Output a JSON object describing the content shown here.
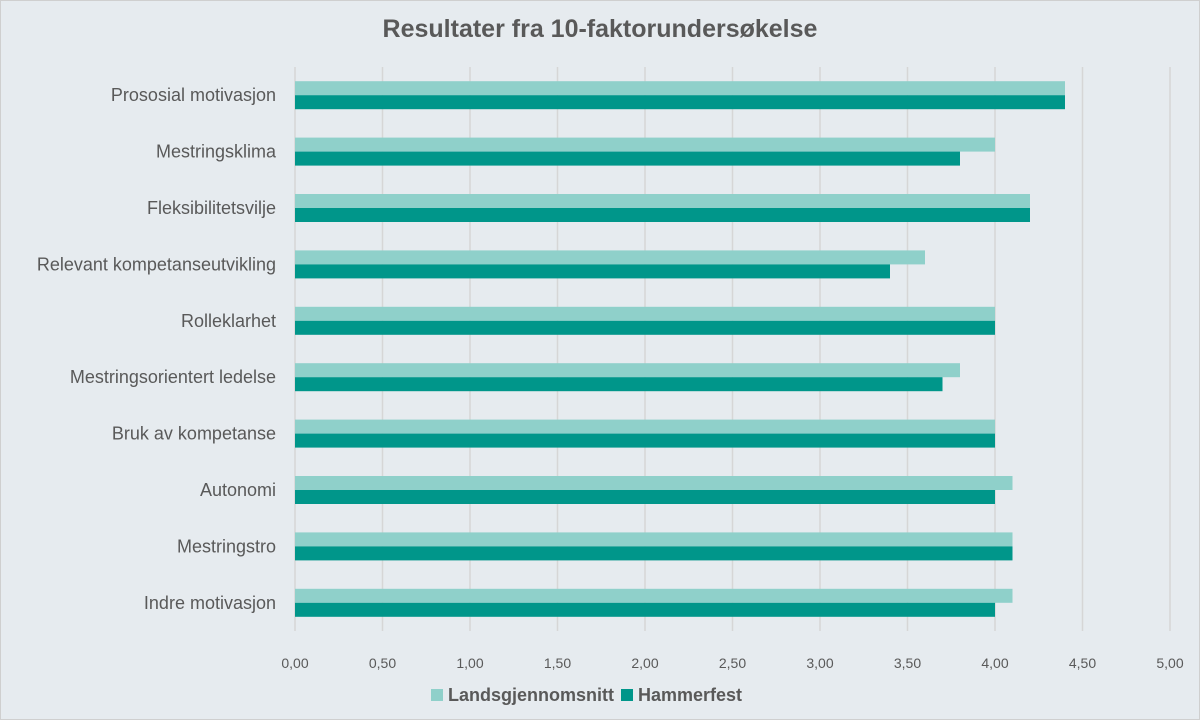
{
  "chart_data": {
    "type": "bar",
    "orientation": "horizontal",
    "title": "Resultater fra 10-faktorundersøkelse",
    "categories": [
      "Prososial motivasjon",
      "Mestringsklima",
      "Fleksibilitetsvilje",
      "Relevant kompetanseutvikling",
      "Rolleklarhet",
      "Mestringsorientert ledelse",
      "Bruk av kompetanse",
      "Autonomi",
      "Mestringstro",
      "Indre motivasjon"
    ],
    "series": [
      {
        "name": "Landsgjennomsnitt",
        "color": "#8fd0ca",
        "values": [
          4.4,
          4.0,
          4.2,
          3.6,
          4.0,
          3.8,
          4.0,
          4.1,
          4.1,
          4.1
        ]
      },
      {
        "name": "Hammerfest",
        "color": "#00968a",
        "values": [
          4.4,
          3.8,
          4.2,
          3.4,
          4.0,
          3.7,
          4.0,
          4.0,
          4.1,
          4.0
        ]
      }
    ],
    "xlim": [
      0,
      5
    ],
    "ticks": [
      "0,00",
      "0,50",
      "1,00",
      "1,50",
      "2,00",
      "2,50",
      "3,00",
      "3,50",
      "4,00",
      "4,50",
      "5,00"
    ],
    "grid": true,
    "legend_position": "bottom"
  }
}
